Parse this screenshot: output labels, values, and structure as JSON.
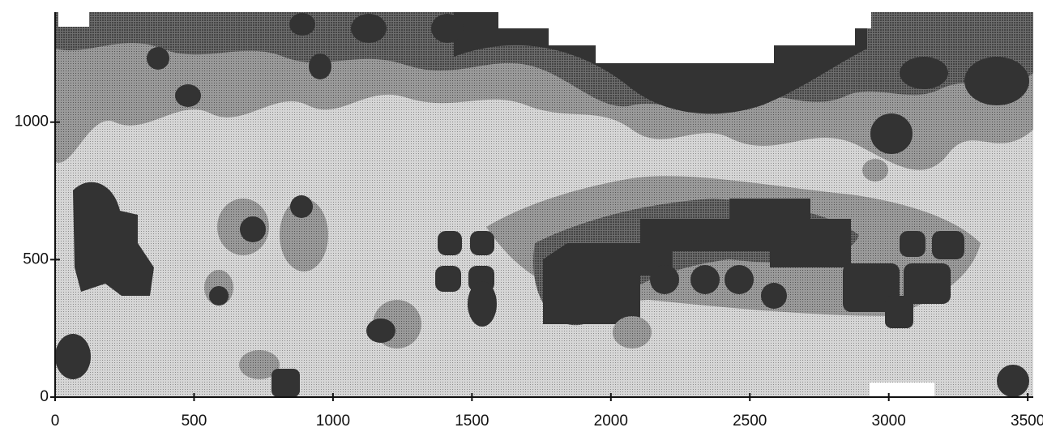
{
  "chart_data": {
    "type": "contour",
    "xlim": [
      0,
      3520
    ],
    "ylim": [
      0,
      1400
    ],
    "xticks": [
      0,
      500,
      1000,
      1500,
      2000,
      2500,
      3000,
      3500
    ],
    "yticks": [
      0,
      500,
      1000
    ]
  }
}
